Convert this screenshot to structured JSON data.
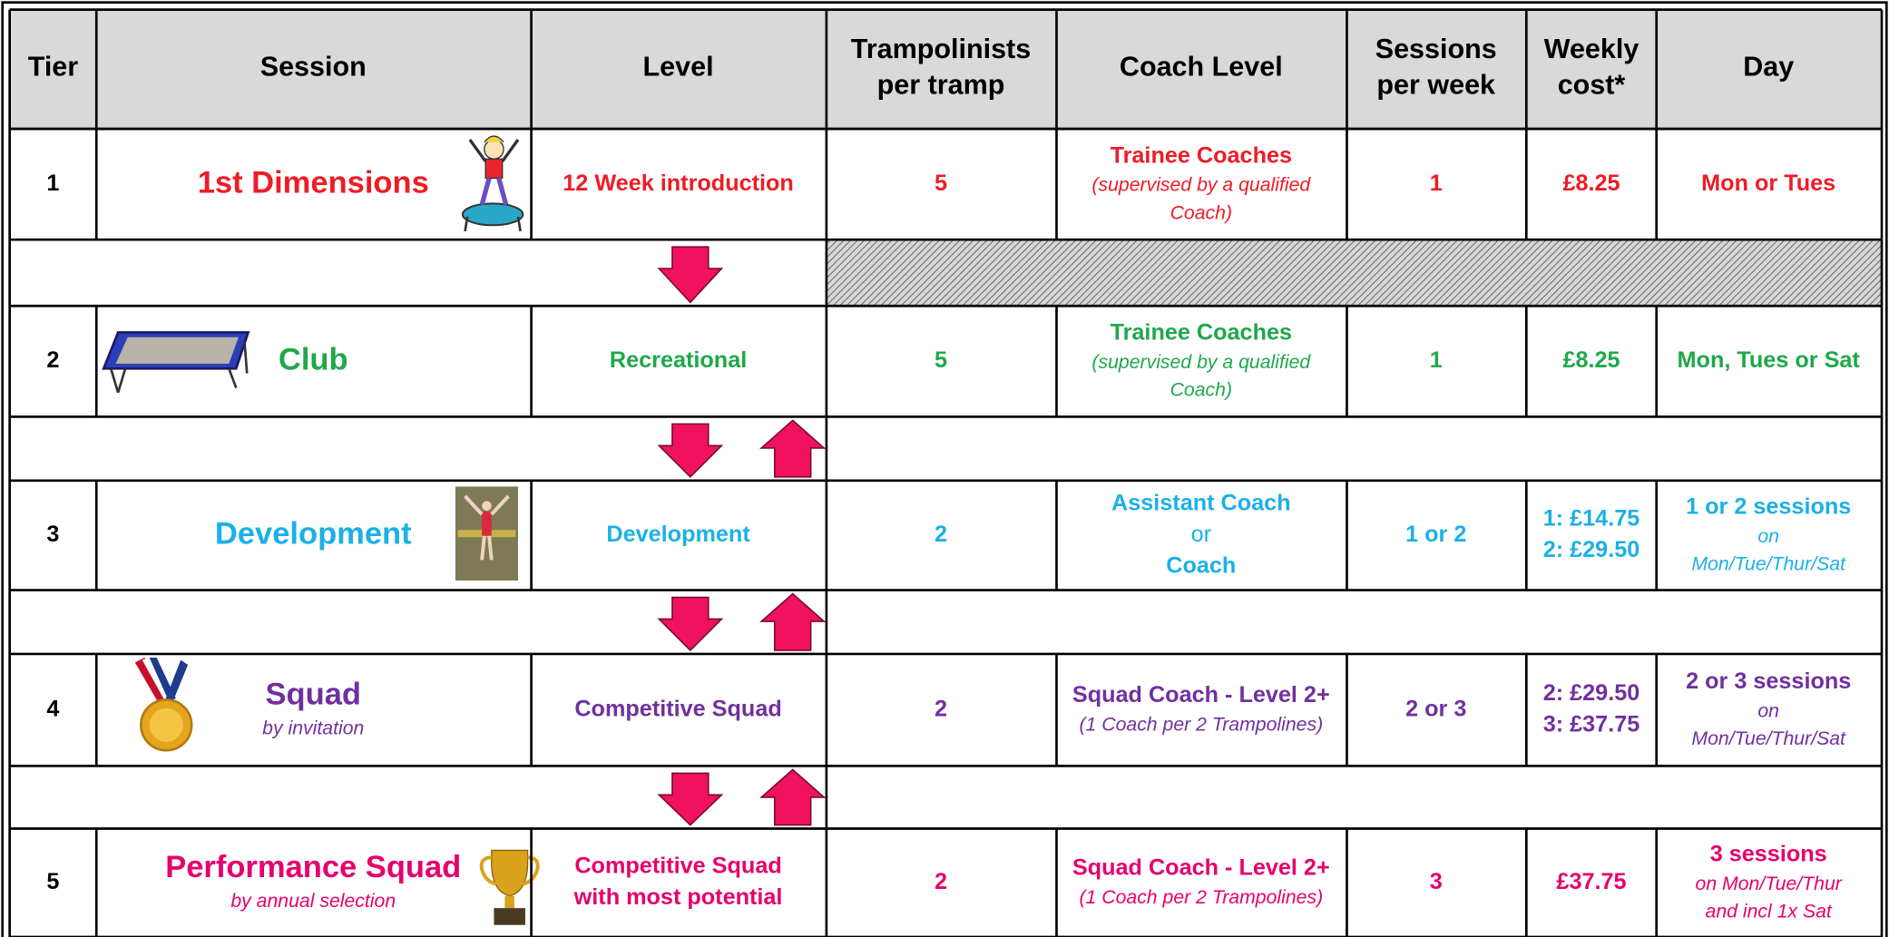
{
  "header": {
    "columns": [
      [
        "Tier"
      ],
      [
        "Session"
      ],
      [
        "Level"
      ],
      [
        "Trampolinists",
        "per tramp"
      ],
      [
        "Coach Level"
      ],
      [
        "Sessions",
        "per week"
      ],
      [
        "Weekly",
        "cost*"
      ],
      [
        "Day"
      ]
    ]
  },
  "tiers": [
    {
      "color": "#ee1c25",
      "cells": [
        [
          {
            "bold": "1"
          }
        ],
        [
          {
            "big": "1st Dimensions"
          }
        ],
        [
          {
            "bold": "12 Week introduction"
          }
        ],
        [
          {
            "bold": "5"
          }
        ],
        [
          {
            "bold": "Trainee Coaches"
          },
          {
            "italic": "(supervised by a qualified"
          },
          {
            "italic": "Coach)"
          }
        ],
        [
          {
            "bold": "1"
          }
        ],
        [
          {
            "bold": "£8.25"
          }
        ],
        [
          {
            "bold": "Mon or Tues"
          }
        ]
      ]
    },
    {
      "color": "#1fa84a",
      "cells": [
        [
          {
            "bold": "2"
          }
        ],
        [
          {
            "big": "Club"
          }
        ],
        [
          {
            "bold": "Recreational"
          }
        ],
        [
          {
            "bold": "5"
          }
        ],
        [
          {
            "bold": "Trainee Coaches"
          },
          {
            "italic": "(supervised by a qualified"
          },
          {
            "italic": "Coach)"
          }
        ],
        [
          {
            "bold": "1"
          }
        ],
        [
          {
            "bold": "£8.25"
          }
        ],
        [
          {
            "bold": "Mon, Tues or Sat"
          }
        ]
      ]
    },
    {
      "color": "#1cb0e6",
      "cells": [
        [
          {
            "bold": "3"
          }
        ],
        [
          {
            "big": "Development"
          }
        ],
        [
          {
            "bold": "Development"
          }
        ],
        [
          {
            "bold": "2"
          }
        ],
        [
          {
            "bold": "Assistant Coach"
          },
          {
            "plain": "or"
          },
          {
            "bold": "Coach"
          }
        ],
        [
          {
            "bold": "1 or 2"
          }
        ],
        [
          {
            "bold": "1: £14.75"
          },
          {
            "bold": "2: £29.50"
          }
        ],
        [
          {
            "bold": "1 or 2 sessions"
          },
          {
            "italic": "on"
          },
          {
            "italic": "Mon/Tue/Thur/Sat"
          }
        ]
      ]
    },
    {
      "color": "#7030a0",
      "cells": [
        [
          {
            "bold": "4"
          }
        ],
        [
          {
            "big": "Squad"
          },
          {
            "italic": "by invitation"
          }
        ],
        [
          {
            "bold": "Competitive Squad"
          }
        ],
        [
          {
            "bold": "2"
          }
        ],
        [
          {
            "bold": "Squad Coach - Level 2+"
          },
          {
            "italic": "(1 Coach per 2 Trampolines)"
          }
        ],
        [
          {
            "bold": "2 or 3"
          }
        ],
        [
          {
            "bold": "2: £29.50"
          },
          {
            "bold": "3: £37.75"
          }
        ],
        [
          {
            "bold": "2 or 3 sessions"
          },
          {
            "italic": "on"
          },
          {
            "italic": "Mon/Tue/Thur/Sat"
          }
        ]
      ]
    },
    {
      "color": "#e5006d",
      "cells": [
        [
          {
            "bold": "5"
          }
        ],
        [
          {
            "big": "Performance Squad"
          },
          {
            "italic": "by annual selection"
          }
        ],
        [
          {
            "bold": "Competitive Squad"
          },
          {
            "bold": "with most potential"
          }
        ],
        [
          {
            "bold": "2"
          }
        ],
        [
          {
            "bold": "Squad Coach - Level 2+"
          },
          {
            "italic": "(1 Coach per 2 Trampolines)"
          }
        ],
        [
          {
            "bold": "3"
          }
        ],
        [
          {
            "bold": "£37.75"
          }
        ],
        [
          {
            "bold": "3 sessions"
          },
          {
            "italic": "on Mon/Tue/Thur"
          },
          {
            "italic": "and incl 1x Sat"
          }
        ]
      ]
    }
  ]
}
